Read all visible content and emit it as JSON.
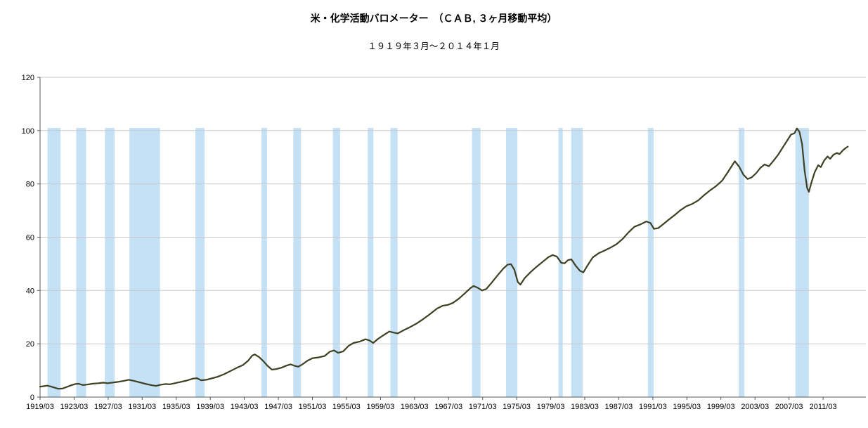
{
  "page": {
    "background": "#ffffff"
  },
  "chart_data": {
    "type": "line",
    "title": "米・化学活動バロメーター　（ＣＡＢ, ３ヶ月移動平均）",
    "subtitle": "１９１９年３月～２０１４年１月",
    "legend": "none",
    "grid": true,
    "grid_color": "#c9c9c9",
    "axis_color": "#595959",
    "x_axis": {
      "min": 1919.1667,
      "max": 2016.2,
      "tick_interval_years": 4,
      "tick_labels": [
        "1919/03",
        "1923/03",
        "1927/03",
        "1931/03",
        "1935/03",
        "1939/03",
        "1943/03",
        "1947/03",
        "1951/03",
        "1955/03",
        "1959/03",
        "1963/03",
        "1967/03",
        "1971/03",
        "1975/03",
        "1979/03",
        "1983/03",
        "1987/03",
        "1991/03",
        "1995/03",
        "1999/03",
        "2003/03",
        "2007/03",
        "2011/03"
      ]
    },
    "y_axis": {
      "min": 0,
      "max": 120,
      "ticks": [
        0,
        20,
        40,
        60,
        80,
        100,
        120
      ]
    },
    "shaded_bands": {
      "color": "#c5e1f6",
      "top_value": 101,
      "ranges": [
        [
          1920.04,
          1921.58
        ],
        [
          1923.42,
          1924.58
        ],
        [
          1926.79,
          1927.92
        ],
        [
          1929.67,
          1933.25
        ],
        [
          1937.42,
          1938.5
        ],
        [
          1945.17,
          1945.83
        ],
        [
          1948.92,
          1949.83
        ],
        [
          1953.58,
          1954.42
        ],
        [
          1957.67,
          1958.33
        ],
        [
          1960.33,
          1961.17
        ],
        [
          1969.92,
          1970.92
        ],
        [
          1973.92,
          1975.25
        ],
        [
          1980.08,
          1980.58
        ],
        [
          1981.58,
          1982.92
        ],
        [
          1990.58,
          1991.25
        ],
        [
          2001.25,
          2001.92
        ],
        [
          2007.92,
          2009.5
        ]
      ]
    },
    "series": {
      "color": "#3f3f23",
      "stroke_width": 2.2,
      "points": [
        [
          1919.17,
          3.9
        ],
        [
          1919.6,
          4.1
        ],
        [
          1920.0,
          4.3
        ],
        [
          1920.4,
          4.0
        ],
        [
          1920.9,
          3.5
        ],
        [
          1921.3,
          3.1
        ],
        [
          1921.8,
          3.2
        ],
        [
          1922.3,
          3.8
        ],
        [
          1922.8,
          4.4
        ],
        [
          1923.3,
          4.9
        ],
        [
          1923.7,
          5.0
        ],
        [
          1924.2,
          4.5
        ],
        [
          1924.7,
          4.7
        ],
        [
          1925.3,
          5.0
        ],
        [
          1926.0,
          5.2
        ],
        [
          1926.6,
          5.4
        ],
        [
          1927.1,
          5.2
        ],
        [
          1927.6,
          5.4
        ],
        [
          1928.3,
          5.7
        ],
        [
          1929.0,
          6.1
        ],
        [
          1929.6,
          6.5
        ],
        [
          1930.2,
          6.1
        ],
        [
          1930.8,
          5.6
        ],
        [
          1931.5,
          5.0
        ],
        [
          1932.2,
          4.5
        ],
        [
          1932.8,
          4.2
        ],
        [
          1933.3,
          4.6
        ],
        [
          1933.9,
          4.9
        ],
        [
          1934.4,
          4.8
        ],
        [
          1935.0,
          5.2
        ],
        [
          1935.7,
          5.7
        ],
        [
          1936.4,
          6.2
        ],
        [
          1937.1,
          6.9
        ],
        [
          1937.6,
          7.1
        ],
        [
          1938.1,
          6.3
        ],
        [
          1938.7,
          6.5
        ],
        [
          1939.3,
          7.0
        ],
        [
          1940.0,
          7.6
        ],
        [
          1940.8,
          8.6
        ],
        [
          1941.5,
          9.7
        ],
        [
          1942.3,
          11.0
        ],
        [
          1943.0,
          12.0
        ],
        [
          1943.6,
          13.6
        ],
        [
          1944.1,
          15.6
        ],
        [
          1944.4,
          16.0
        ],
        [
          1944.9,
          15.0
        ],
        [
          1945.4,
          13.5
        ],
        [
          1945.9,
          11.7
        ],
        [
          1946.4,
          10.3
        ],
        [
          1946.9,
          10.5
        ],
        [
          1947.5,
          11.0
        ],
        [
          1948.1,
          11.8
        ],
        [
          1948.6,
          12.3
        ],
        [
          1949.1,
          11.7
        ],
        [
          1949.5,
          11.4
        ],
        [
          1950.0,
          12.3
        ],
        [
          1950.6,
          13.7
        ],
        [
          1951.2,
          14.6
        ],
        [
          1951.9,
          14.9
        ],
        [
          1952.6,
          15.4
        ],
        [
          1953.2,
          17.0
        ],
        [
          1953.7,
          17.5
        ],
        [
          1954.2,
          16.6
        ],
        [
          1954.8,
          17.2
        ],
        [
          1955.4,
          19.2
        ],
        [
          1956.0,
          20.3
        ],
        [
          1956.7,
          20.8
        ],
        [
          1957.4,
          21.7
        ],
        [
          1957.9,
          21.2
        ],
        [
          1958.3,
          20.3
        ],
        [
          1958.9,
          21.9
        ],
        [
          1959.6,
          23.4
        ],
        [
          1960.2,
          24.6
        ],
        [
          1960.7,
          24.2
        ],
        [
          1961.2,
          23.9
        ],
        [
          1961.9,
          25.1
        ],
        [
          1962.6,
          26.2
        ],
        [
          1963.4,
          27.6
        ],
        [
          1964.2,
          29.3
        ],
        [
          1965.0,
          31.2
        ],
        [
          1965.8,
          33.2
        ],
        [
          1966.5,
          34.3
        ],
        [
          1967.1,
          34.6
        ],
        [
          1967.7,
          35.4
        ],
        [
          1968.4,
          37.0
        ],
        [
          1969.1,
          39.0
        ],
        [
          1969.7,
          40.8
        ],
        [
          1970.1,
          41.7
        ],
        [
          1970.6,
          41.0
        ],
        [
          1971.1,
          40.0
        ],
        [
          1971.6,
          40.6
        ],
        [
          1972.2,
          42.8
        ],
        [
          1972.9,
          45.6
        ],
        [
          1973.6,
          48.2
        ],
        [
          1974.1,
          49.7
        ],
        [
          1974.5,
          49.9
        ],
        [
          1974.9,
          47.8
        ],
        [
          1975.3,
          43.2
        ],
        [
          1975.6,
          42.2
        ],
        [
          1976.1,
          44.6
        ],
        [
          1976.8,
          46.9
        ],
        [
          1977.5,
          48.9
        ],
        [
          1978.2,
          50.7
        ],
        [
          1978.9,
          52.5
        ],
        [
          1979.4,
          53.3
        ],
        [
          1979.9,
          52.7
        ],
        [
          1980.4,
          50.4
        ],
        [
          1980.8,
          50.2
        ],
        [
          1981.2,
          51.4
        ],
        [
          1981.6,
          51.7
        ],
        [
          1982.1,
          49.3
        ],
        [
          1982.6,
          47.4
        ],
        [
          1983.0,
          46.8
        ],
        [
          1983.5,
          49.4
        ],
        [
          1984.1,
          52.4
        ],
        [
          1984.8,
          54.0
        ],
        [
          1985.5,
          55.0
        ],
        [
          1986.2,
          56.1
        ],
        [
          1986.9,
          57.4
        ],
        [
          1987.6,
          59.3
        ],
        [
          1988.3,
          61.8
        ],
        [
          1989.0,
          63.9
        ],
        [
          1989.7,
          64.8
        ],
        [
          1990.4,
          65.9
        ],
        [
          1990.9,
          65.3
        ],
        [
          1991.3,
          63.1
        ],
        [
          1991.8,
          63.4
        ],
        [
          1992.4,
          64.9
        ],
        [
          1993.0,
          66.5
        ],
        [
          1993.7,
          68.2
        ],
        [
          1994.4,
          70.1
        ],
        [
          1995.1,
          71.6
        ],
        [
          1995.8,
          72.5
        ],
        [
          1996.5,
          73.8
        ],
        [
          1997.2,
          75.8
        ],
        [
          1997.9,
          77.6
        ],
        [
          1998.6,
          79.2
        ],
        [
          1999.3,
          81.2
        ],
        [
          1999.9,
          84.0
        ],
        [
          2000.4,
          86.5
        ],
        [
          2000.8,
          88.5
        ],
        [
          2001.3,
          86.5
        ],
        [
          2001.8,
          83.5
        ],
        [
          2002.3,
          81.8
        ],
        [
          2002.8,
          82.5
        ],
        [
          2003.3,
          84.0
        ],
        [
          2003.8,
          86.0
        ],
        [
          2004.3,
          87.3
        ],
        [
          2004.8,
          86.6
        ],
        [
          2005.3,
          88.5
        ],
        [
          2005.9,
          91.0
        ],
        [
          2006.5,
          94.0
        ],
        [
          2007.0,
          96.5
        ],
        [
          2007.4,
          98.5
        ],
        [
          2007.8,
          99.0
        ],
        [
          2008.1,
          100.8
        ],
        [
          2008.4,
          99.5
        ],
        [
          2008.7,
          95.0
        ],
        [
          2009.0,
          85.0
        ],
        [
          2009.3,
          78.5
        ],
        [
          2009.5,
          77.0
        ],
        [
          2009.8,
          80.5
        ],
        [
          2010.2,
          84.5
        ],
        [
          2010.6,
          87.0
        ],
        [
          2010.9,
          86.3
        ],
        [
          2011.3,
          88.8
        ],
        [
          2011.7,
          90.3
        ],
        [
          2012.0,
          89.4
        ],
        [
          2012.4,
          91.0
        ],
        [
          2012.8,
          91.6
        ],
        [
          2013.1,
          91.2
        ],
        [
          2013.5,
          92.6
        ],
        [
          2013.8,
          93.4
        ],
        [
          2014.08,
          94.0
        ]
      ]
    }
  }
}
